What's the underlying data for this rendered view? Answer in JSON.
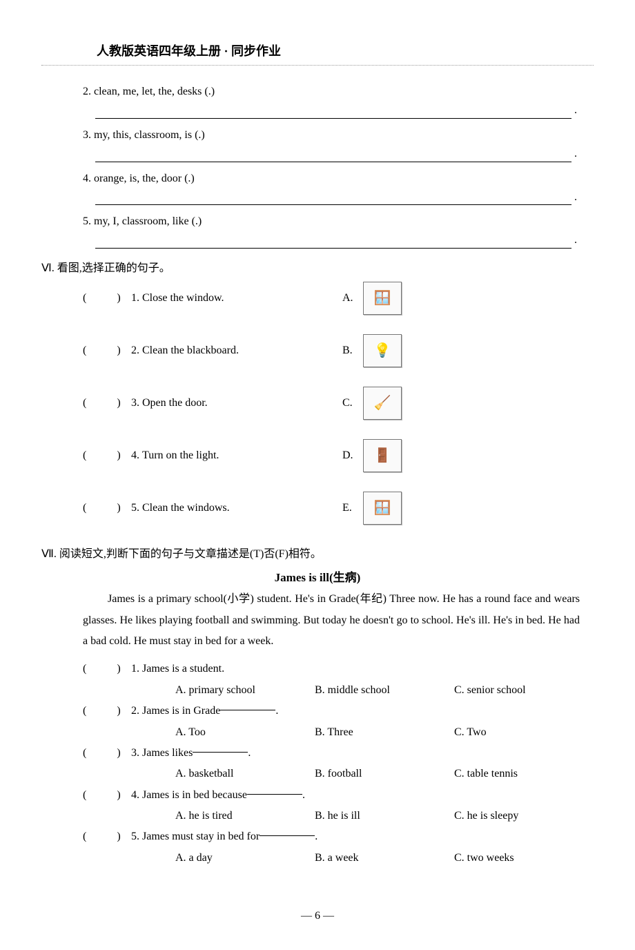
{
  "header": {
    "title": "人教版英语四年级上册 · 同步作业"
  },
  "sectionV": {
    "items": [
      {
        "num": "2.",
        "text": "clean, me, let, the, desks (.)"
      },
      {
        "num": "3.",
        "text": "my, this, classroom, is (.)"
      },
      {
        "num": "4.",
        "text": "orange, is, the, door (.)"
      },
      {
        "num": "5.",
        "text": "my, I, classroom, like (.)"
      }
    ]
  },
  "sectionVI": {
    "title": "Ⅵ. 看图,选择正确的句子。",
    "rows": [
      {
        "num": "1.",
        "text": "Close the window.",
        "label": "A.",
        "icon": "🪟"
      },
      {
        "num": "2.",
        "text": "Clean the blackboard.",
        "label": "B.",
        "icon": "💡"
      },
      {
        "num": "3.",
        "text": "Open the door.",
        "label": "C.",
        "icon": "🧹"
      },
      {
        "num": "4.",
        "text": "Turn on the light.",
        "label": "D.",
        "icon": "🚪"
      },
      {
        "num": "5.",
        "text": "Clean the windows.",
        "label": "E.",
        "icon": "🪟"
      }
    ]
  },
  "sectionVII": {
    "title": "Ⅶ. 阅读短文,判断下面的句子与文章描述是(T)否(F)相符。",
    "storyTitle": "James is ill(生病)",
    "passage": "James is a primary school(小学) student. He's in Grade(年纪) Three now. He has a round face and wears glasses. He likes playing football and swimming. But today he doesn't go to school. He's ill. He's in bed. He had a bad cold. He must stay in bed for a week.",
    "questions": [
      {
        "num": "1.",
        "stem": "James is a student.",
        "A": "A. primary school",
        "B": "B. middle school",
        "C": "C. senior school"
      },
      {
        "num": "2.",
        "stem": "James is in Grade ",
        "A": "A. Too",
        "B": "B. Three",
        "C": "C. Two",
        "blank": true,
        "tail": "."
      },
      {
        "num": "3.",
        "stem": "James likes ",
        "A": "A. basketball",
        "B": "B. football",
        "C": "C. table tennis",
        "blank": true,
        "tail": "."
      },
      {
        "num": "4.",
        "stem": "James is in bed because ",
        "A": "A. he is tired",
        "B": "B. he is ill",
        "C": "C. he is sleepy",
        "blank": true,
        "tail": "."
      },
      {
        "num": "5.",
        "stem": "James must stay in bed for ",
        "A": "A. a day",
        "B": "B. a week",
        "C": "C. two weeks",
        "blank": true,
        "tail": "."
      }
    ]
  },
  "footer": {
    "page": "— 6 —"
  },
  "paren": "(　　)"
}
